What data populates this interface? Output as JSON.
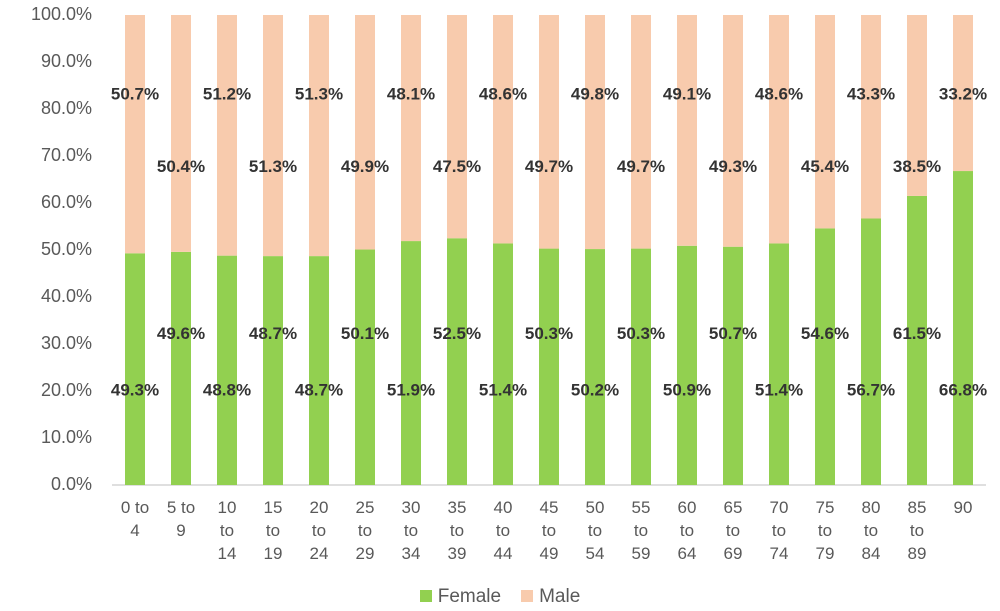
{
  "chart_data": {
    "type": "stacked_bar",
    "categories": [
      "0 to 4",
      "5 to 9",
      "10 to 14",
      "15 to 19",
      "20 to 24",
      "25 to 29",
      "30 to 34",
      "35 to 39",
      "40 to 44",
      "45 to 49",
      "50 to 54",
      "55 to 59",
      "60 to 64",
      "65 to 69",
      "70 to 74",
      "75 to 79",
      "80 to 84",
      "85 to 89",
      "90"
    ],
    "series": [
      {
        "name": "Female",
        "color": "#92d050",
        "values": [
          49.3,
          49.6,
          48.8,
          48.7,
          48.7,
          50.1,
          51.9,
          52.5,
          51.4,
          50.3,
          50.2,
          50.3,
          50.9,
          50.7,
          51.4,
          54.6,
          56.7,
          61.5,
          66.8
        ],
        "value_labels": [
          "49.3%",
          "49.6%",
          "48.8%",
          "48.7%",
          "48.7%",
          "50.1%",
          "51.9%",
          "52.5%",
          "51.4%",
          "50.3%",
          "50.2%",
          "50.3%",
          "50.9%",
          "50.7%",
          "51.4%",
          "54.6%",
          "56.7%",
          "61.5%",
          "66.8%"
        ]
      },
      {
        "name": "Male",
        "color": "#f8cbad",
        "values": [
          50.7,
          50.4,
          51.2,
          51.3,
          51.3,
          49.9,
          48.1,
          47.5,
          48.6,
          49.7,
          49.8,
          49.7,
          49.1,
          49.3,
          48.6,
          45.4,
          43.3,
          38.5,
          33.2
        ],
        "value_labels": [
          "50.7%",
          "50.4%",
          "51.2%",
          "51.3%",
          "51.3%",
          "49.9%",
          "48.1%",
          "47.5%",
          "48.6%",
          "49.7%",
          "49.8%",
          "49.7%",
          "49.1%",
          "49.3%",
          "48.6%",
          "45.4%",
          "43.3%",
          "38.5%",
          "33.2%"
        ]
      }
    ],
    "ylim": [
      0,
      100
    ],
    "yticks": [
      {
        "value": 0,
        "label": "0.0%"
      },
      {
        "value": 10,
        "label": "10.0%"
      },
      {
        "value": 20,
        "label": "20.0%"
      },
      {
        "value": 30,
        "label": "30.0%"
      },
      {
        "value": 40,
        "label": "40.0%"
      },
      {
        "value": 50,
        "label": "50.0%"
      },
      {
        "value": 60,
        "label": "60.0%"
      },
      {
        "value": 70,
        "label": "70.0%"
      },
      {
        "value": 80,
        "label": "80.0%"
      },
      {
        "value": 90,
        "label": "90.0%"
      },
      {
        "value": 100,
        "label": "100.0%"
      }
    ],
    "legend": "bottom"
  }
}
